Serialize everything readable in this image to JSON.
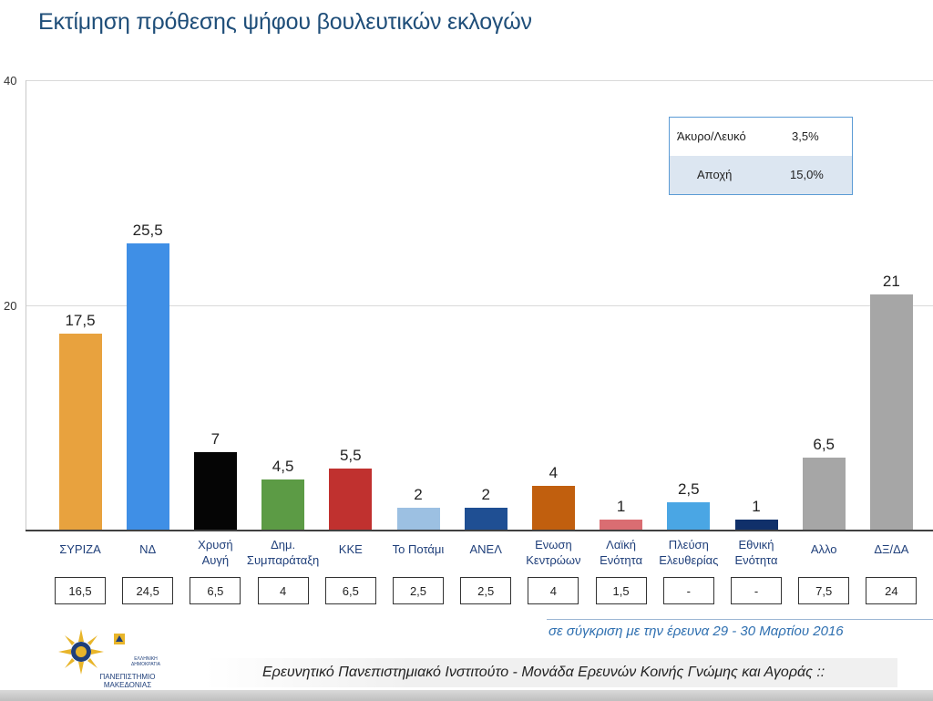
{
  "title": "Εκτίμηση πρόθεσης ψήφου βουλευτικών εκλογών",
  "chart_data": {
    "type": "bar",
    "title": "Εκτίμηση πρόθεσης ψήφου βουλευτικών εκλογών",
    "ylim": [
      0,
      40
    ],
    "yticks": [
      "40",
      "20"
    ],
    "categories": [
      "ΣΥΡΙΖΑ",
      "ΝΔ",
      "Χρυσή\nΑυγή",
      "Δημ.\nΣυμπαράταξη",
      "ΚΚΕ",
      "Το Ποτάμι",
      "ΑΝΕΛ",
      "Ενωση\nΚεντρώων",
      "Λαϊκή\nΕνότητα",
      "Πλεύση\nΕλευθερίας",
      "Εθνική\nΕνότητα",
      "Αλλο",
      "ΔΞ/ΔΑ"
    ],
    "values": [
      17.5,
      25.5,
      7,
      4.5,
      5.5,
      2,
      2,
      4,
      1,
      2.5,
      1,
      6.5,
      21
    ],
    "value_labels": [
      "17,5",
      "25,5",
      "7",
      "4,5",
      "5,5",
      "2",
      "2",
      "4",
      "1",
      "2,5",
      "1",
      "6,5",
      "21"
    ],
    "previous_labels": [
      "16,5",
      "24,5",
      "6,5",
      "4",
      "6,5",
      "2,5",
      "2,5",
      "4",
      "1,5",
      "-",
      "-",
      "7,5",
      "24"
    ],
    "colors": [
      "#e8a23e",
      "#3f8fe6",
      "#050505",
      "#5c9b45",
      "#c0312f",
      "#9cc0e2",
      "#1f4f93",
      "#c15f0e",
      "#da6d72",
      "#4aa6e4",
      "#10306a",
      "#a6a6a6",
      "#a6a6a6"
    ]
  },
  "legend_box": {
    "rows": [
      {
        "label": "Άκυρο/Λευκό",
        "value": "3,5%"
      },
      {
        "label": "Αποχή",
        "value": "15,0%"
      }
    ]
  },
  "comparison_note": "σε σύγκριση με την έρευνα 29 - 30 Μαρτίου 2016",
  "footer": "Ερευνητικό Πανεπιστημιακό Ινστιτούτο - Μονάδα Ερευνών Κοινής Γνώμης και Αγοράς ::",
  "logo": {
    "text_top": "ΕΛΛΗΝΙΚΗ ΔΗΜΟΚΡΑΤΙΑ",
    "text_name": "ΠΑΝΕΠΙΣΤΗΜΙΟ ΜΑΚΕΔΟΝΙΑΣ"
  }
}
